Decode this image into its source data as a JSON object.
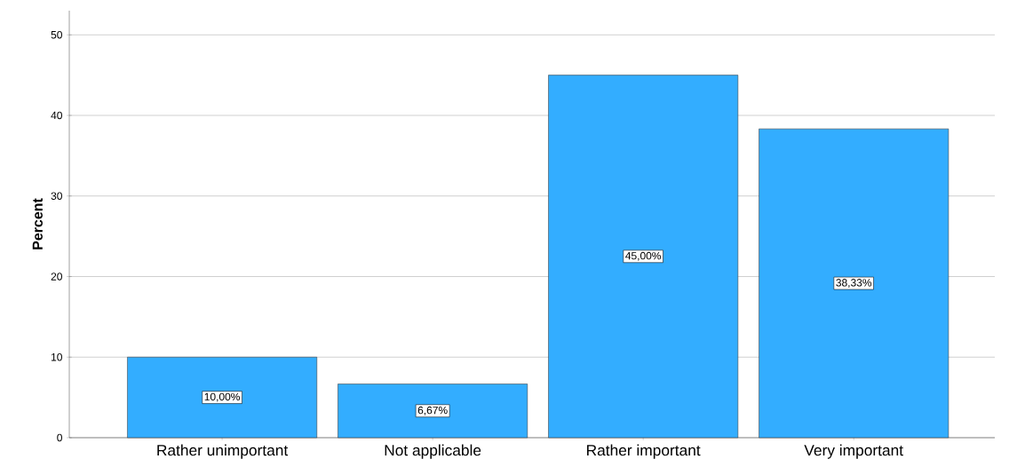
{
  "chart_data": {
    "type": "bar",
    "ylabel": "Percent",
    "categories": [
      "Rather unimportant",
      "Not applicable",
      "Rather important",
      "Very important"
    ],
    "values": [
      10,
      6.67,
      45,
      38.33
    ],
    "value_labels": [
      "10,00%",
      "6,67%",
      "45,00%",
      "38,33%"
    ],
    "color": "#33adff",
    "ylim": [
      0,
      53
    ],
    "yticks": [
      0,
      10,
      20,
      30,
      40,
      50
    ],
    "grid": "y"
  }
}
